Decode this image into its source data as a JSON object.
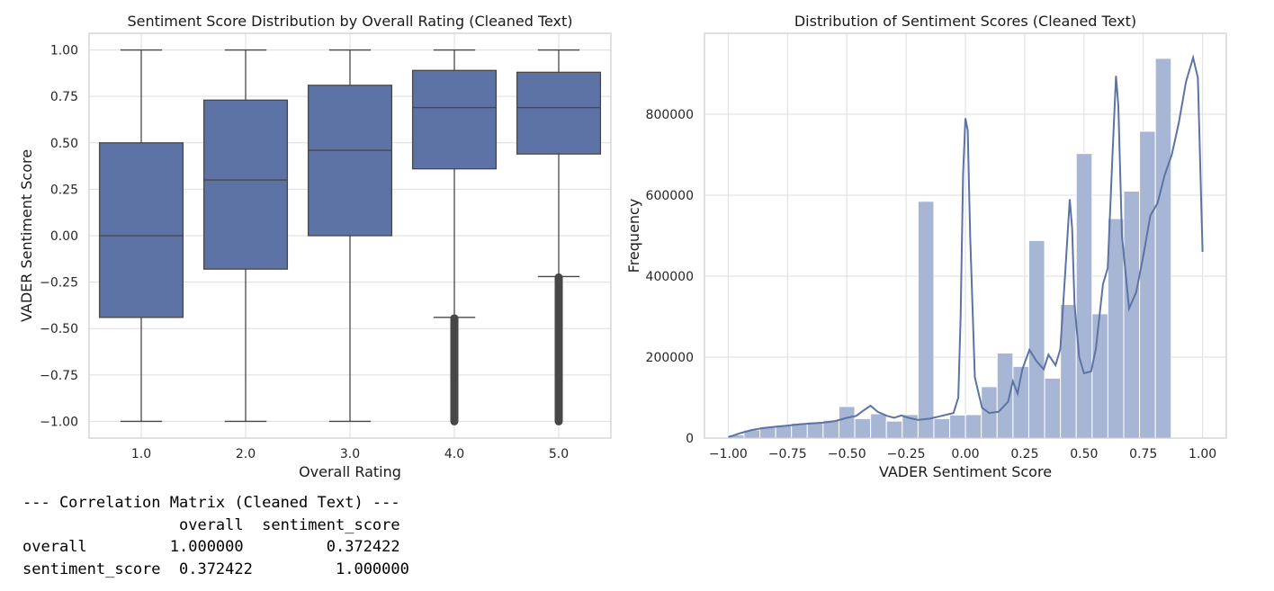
{
  "chart_data": [
    {
      "type": "box",
      "title": "Sentiment Score Distribution by Overall Rating (Cleaned Text)",
      "xlabel": "Overall Rating",
      "ylabel": "VADER Sentiment Score",
      "ylim": [
        -1.09,
        1.09
      ],
      "yticks": [
        1.0,
        0.75,
        0.5,
        0.25,
        0.0,
        -0.25,
        -0.5,
        -0.75,
        -1.0
      ],
      "ytick_labels": [
        "1.00",
        "0.75",
        "0.50",
        "0.25",
        "0.00",
        "−0.25",
        "−0.50",
        "−0.75",
        "−1.00"
      ],
      "categories": [
        "1.0",
        "2.0",
        "3.0",
        "4.0",
        "5.0"
      ],
      "boxes": [
        {
          "whislo": -1.0,
          "q1": -0.44,
          "med": 0.0,
          "q3": 0.5,
          "whishi": 1.0,
          "fliers_range": null
        },
        {
          "whislo": -1.0,
          "q1": -0.18,
          "med": 0.3,
          "q3": 0.73,
          "whishi": 1.0,
          "fliers_range": null
        },
        {
          "whislo": -1.0,
          "q1": 0.0,
          "med": 0.46,
          "q3": 0.81,
          "whishi": 1.0,
          "fliers_range": null
        },
        {
          "whislo": -0.44,
          "q1": 0.36,
          "med": 0.69,
          "q3": 0.89,
          "whishi": 1.0,
          "fliers_range": [
            -1.0,
            -0.44
          ]
        },
        {
          "whislo": -0.22,
          "q1": 0.44,
          "med": 0.69,
          "q3": 0.88,
          "whishi": 1.0,
          "fliers_range": [
            -1.0,
            -0.22
          ]
        }
      ],
      "grid": true,
      "colors": {
        "box": "#5d72a5",
        "line": "#474747",
        "grid": "#dddddd",
        "frame": "#cccccc"
      }
    },
    {
      "type": "histogram",
      "title": "Distribution of Sentiment Scores (Cleaned Text)",
      "xlabel": "VADER Sentiment Score",
      "ylabel": "Frequency",
      "xlim": [
        -1.1,
        1.1
      ],
      "ylim": [
        0,
        1000000
      ],
      "xticks": [
        -1.0,
        -0.75,
        -0.5,
        -0.25,
        0.0,
        0.25,
        0.5,
        0.75,
        1.0
      ],
      "xtick_labels": [
        "−1.00",
        "−0.75",
        "−0.50",
        "−0.25",
        "0.00",
        "0.25",
        "0.50",
        "0.75",
        "1.00"
      ],
      "yticks": [
        0,
        200000,
        400000,
        600000,
        800000
      ],
      "ytick_labels": [
        "0",
        "200000",
        "400000",
        "600000",
        "800000"
      ],
      "bin_start": -1.0,
      "bin_width": 0.0667,
      "counts": [
        8000,
        20000,
        28000,
        32000,
        37000,
        40000,
        44000,
        78000,
        48000,
        60000,
        42000,
        58000,
        585000,
        48000,
        57000,
        58000,
        127000,
        210000,
        177000,
        488000,
        148000,
        330000,
        703000,
        307000,
        542000,
        610000,
        758000,
        938000
      ],
      "kde": [
        [
          -1.0,
          2000
        ],
        [
          -0.95,
          12000
        ],
        [
          -0.9,
          20000
        ],
        [
          -0.85,
          25000
        ],
        [
          -0.8,
          28000
        ],
        [
          -0.75,
          31000
        ],
        [
          -0.7,
          34000
        ],
        [
          -0.65,
          36000
        ],
        [
          -0.6,
          38000
        ],
        [
          -0.55,
          42000
        ],
        [
          -0.5,
          50000
        ],
        [
          -0.46,
          55000
        ],
        [
          -0.43,
          68000
        ],
        [
          -0.4,
          80000
        ],
        [
          -0.37,
          65000
        ],
        [
          -0.33,
          55000
        ],
        [
          -0.3,
          50000
        ],
        [
          -0.27,
          56000
        ],
        [
          -0.24,
          50000
        ],
        [
          -0.2,
          45000
        ],
        [
          -0.15,
          48000
        ],
        [
          -0.1,
          55000
        ],
        [
          -0.05,
          62000
        ],
        [
          -0.03,
          100000
        ],
        [
          -0.02,
          300000
        ],
        [
          -0.01,
          650000
        ],
        [
          0.0,
          790000
        ],
        [
          0.01,
          760000
        ],
        [
          0.02,
          500000
        ],
        [
          0.04,
          150000
        ],
        [
          0.07,
          75000
        ],
        [
          0.1,
          62000
        ],
        [
          0.14,
          65000
        ],
        [
          0.18,
          90000
        ],
        [
          0.2,
          140000
        ],
        [
          0.22,
          110000
        ],
        [
          0.24,
          170000
        ],
        [
          0.27,
          218000
        ],
        [
          0.3,
          190000
        ],
        [
          0.33,
          170000
        ],
        [
          0.35,
          206000
        ],
        [
          0.38,
          180000
        ],
        [
          0.4,
          220000
        ],
        [
          0.42,
          400000
        ],
        [
          0.44,
          590000
        ],
        [
          0.45,
          520000
        ],
        [
          0.46,
          330000
        ],
        [
          0.48,
          200000
        ],
        [
          0.5,
          160000
        ],
        [
          0.53,
          165000
        ],
        [
          0.55,
          220000
        ],
        [
          0.58,
          380000
        ],
        [
          0.6,
          420000
        ],
        [
          0.62,
          700000
        ],
        [
          0.635,
          895000
        ],
        [
          0.645,
          820000
        ],
        [
          0.66,
          500000
        ],
        [
          0.69,
          320000
        ],
        [
          0.72,
          360000
        ],
        [
          0.75,
          450000
        ],
        [
          0.78,
          550000
        ],
        [
          0.81,
          580000
        ],
        [
          0.84,
          650000
        ],
        [
          0.87,
          700000
        ],
        [
          0.9,
          780000
        ],
        [
          0.93,
          880000
        ],
        [
          0.96,
          940000
        ],
        [
          0.98,
          890000
        ],
        [
          1.0,
          460000
        ]
      ],
      "grid": true,
      "colors": {
        "bar": "#a8b6d6",
        "bar_edge": "#ffffff",
        "kde": "#5d72a5",
        "grid": "#dddddd",
        "frame": "#cccccc"
      }
    }
  ],
  "correlation_output": {
    "heading": "--- Correlation Matrix (Cleaned Text) ---",
    "header_row": "                 overall  sentiment_score",
    "row_1": "overall         1.000000         0.372422",
    "row_2": "sentiment_score  0.372422         1.000000"
  }
}
